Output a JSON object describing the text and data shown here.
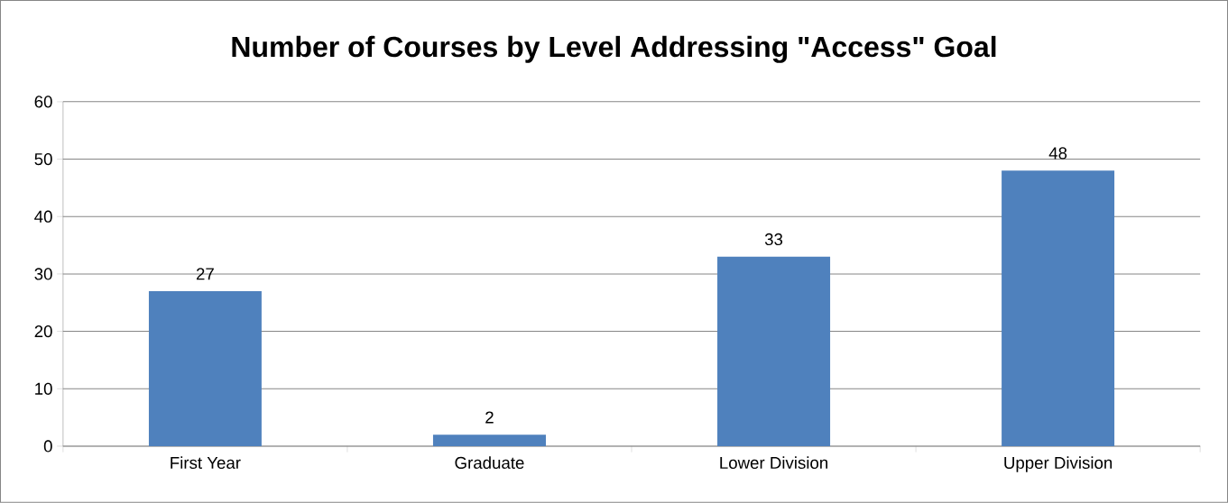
{
  "chart_data": {
    "type": "bar",
    "title": "Number of Courses by Level Addressing \"Access\" Goal",
    "categories": [
      "First Year",
      "Graduate",
      "Lower Division",
      "Upper Division"
    ],
    "values": [
      27,
      2,
      33,
      48
    ],
    "color": "#4f81bd",
    "ylim": [
      0,
      60
    ],
    "yticks": [
      0,
      10,
      20,
      30,
      40,
      50,
      60
    ],
    "grid": "y",
    "data_labels": true
  }
}
